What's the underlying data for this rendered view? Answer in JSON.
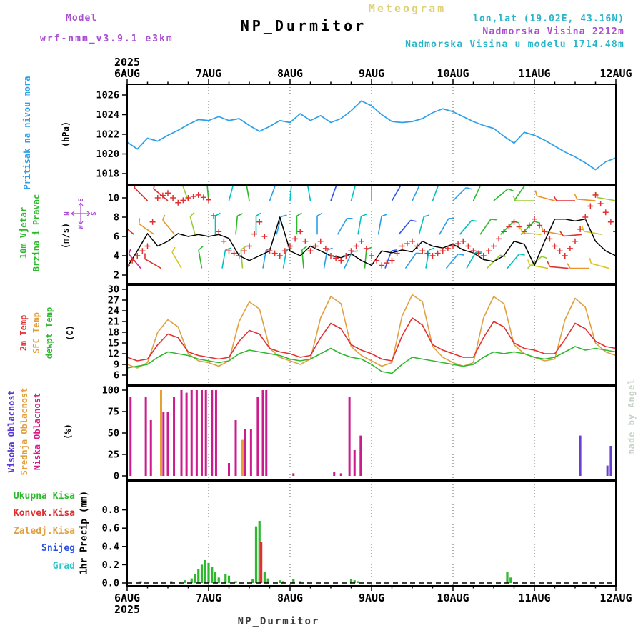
{
  "header": {
    "app_title": "Meteogram",
    "model_label": "Model",
    "model_name": "wrf-nmm_v3.9.1 e3km",
    "station": "NP_Durmitor",
    "lonlat": "lon,lat (19.02E, 43.16N)",
    "elevation": "Nadmorska Visina 2212m",
    "model_elevation": "Nadmorska Visina u modelu 1714.48m"
  },
  "time_axis": {
    "year": "2025",
    "days": [
      "6AUG",
      "7AUG",
      "8AUG",
      "9AUG",
      "10AUG",
      "11AUG",
      "12AUG"
    ],
    "span_hours": 144
  },
  "footer": {
    "station": "NP_Durmitor",
    "year": "2025"
  },
  "watermark": "made by Angel",
  "chart_data": [
    {
      "type": "line",
      "name": "pressure",
      "label": "Pritisak na nivou mora",
      "unit": "(hPa)",
      "yticks": [
        1026,
        1024,
        1022,
        1020,
        1018
      ],
      "ylim": [
        1017,
        1027
      ],
      "color": "#2da0e8",
      "step_hours": 3,
      "values": [
        1021.2,
        1020.5,
        1021.6,
        1021.3,
        1021.9,
        1022.4,
        1023.0,
        1023.5,
        1023.4,
        1023.8,
        1023.4,
        1023.6,
        1022.9,
        1022.3,
        1022.8,
        1023.4,
        1023.2,
        1024.1,
        1023.4,
        1023.9,
        1023.2,
        1023.6,
        1024.4,
        1025.4,
        1024.9,
        1024.0,
        1023.3,
        1023.2,
        1023.3,
        1023.6,
        1024.2,
        1024.6,
        1024.3,
        1023.8,
        1023.3,
        1022.9,
        1022.6,
        1021.8,
        1021.1,
        1022.2,
        1021.9,
        1021.4,
        1020.8,
        1020.2,
        1019.7,
        1019.1,
        1018.4,
        1019.2,
        1019.6
      ]
    },
    {
      "type": "wind-barbs",
      "name": "wind",
      "label1": "10m Vjetar",
      "label2": "Brzina i Pravac",
      "unit": "(m/s)",
      "yticks": [
        10,
        8,
        6,
        4,
        2
      ],
      "ylim": [
        1,
        11
      ],
      "compass": [
        "N",
        "E",
        "S",
        "W"
      ],
      "plus_series": {
        "label": "speed-plus-markers",
        "color": "#e23030",
        "step_hours": 3,
        "values": [
          3,
          4,
          5,
          10,
          10.5,
          9.5,
          10,
          10.3,
          9.8,
          6.5,
          4.5,
          4,
          5,
          7.5,
          4.5,
          4,
          5,
          6.5,
          4.5,
          5.5,
          4,
          3.5,
          4.5,
          5.5,
          4,
          3,
          3.5,
          5,
          5.5,
          4.5,
          4,
          4.5,
          5,
          5.5,
          4.5,
          4,
          5,
          6.5,
          7.5,
          6.5,
          7.8,
          6.5,
          5,
          4,
          5.5,
          8,
          10.3,
          8.5,
          6.5
        ]
      },
      "line_series": {
        "label": "speed-black-line",
        "color": "#000000",
        "step_hours": 3,
        "values": [
          2.8,
          4.5,
          6.3,
          5,
          5.5,
          6.3,
          6,
          6.2,
          6,
          6.2,
          5.8,
          4,
          3.5,
          4,
          4.5,
          8,
          4.5,
          4,
          5,
          4.5,
          4,
          3.8,
          4.2,
          3.5,
          3,
          4.5,
          4.3,
          4.6,
          4.4,
          5.5,
          5,
          4.8,
          5.2,
          4.6,
          4.3,
          3.6,
          3.4,
          4,
          5.5,
          5.2,
          3,
          5.5,
          7.8,
          7.8,
          7.6,
          7.8,
          5.5,
          4.5,
          4
        ]
      },
      "barbs": {
        "step_hours": 2,
        "row_levels": [
          9.7,
          6.2,
          2.7
        ],
        "dir_deg": [
          300,
          310,
          320,
          315,
          305,
          300,
          310,
          320,
          330,
          340,
          345,
          350,
          355,
          0,
          10,
          15,
          5,
          355,
          350,
          0,
          10,
          20,
          15,
          10,
          5,
          0,
          355,
          350,
          0,
          10,
          20,
          30,
          25,
          15,
          10,
          5,
          0,
          10,
          20,
          30,
          40,
          35,
          25,
          15,
          10,
          20,
          30,
          40,
          45,
          40,
          30,
          25,
          35,
          45,
          50,
          45,
          40,
          35,
          45,
          50,
          270,
          275,
          280,
          285,
          280,
          275,
          270,
          265,
          270,
          275,
          280,
          285,
          280
        ],
        "speed_ms": [
          9,
          10,
          10.5,
          9.5,
          8.5,
          9.5,
          10,
          9,
          8,
          7,
          6.5,
          6,
          5.5,
          5,
          4.5,
          5,
          6,
          6.5,
          5.5,
          4.5,
          4,
          3.5,
          4,
          4.5,
          5,
          5.5,
          6,
          5,
          4,
          3.5,
          3,
          3.5,
          4,
          4.5,
          5,
          5.5,
          4.5,
          3.5,
          3,
          2.5,
          3,
          3.5,
          4,
          4.5,
          5,
          4.5,
          4,
          3.5,
          4,
          4.5,
          5,
          5.5,
          6,
          6.5,
          6,
          5.5,
          5,
          5.5,
          6,
          6.5,
          7,
          7.5,
          8,
          8.5,
          9,
          9.5,
          10,
          9.5,
          9,
          8.5,
          8,
          7.5,
          7
        ]
      }
    },
    {
      "type": "line",
      "name": "temperature",
      "unit": "(C)",
      "yticks": [
        30,
        27,
        24,
        21,
        18,
        15,
        12,
        9,
        6
      ],
      "ylim": [
        5,
        31
      ],
      "step_hours": 3,
      "series": [
        {
          "label": "2m Temp",
          "color": "#e23030",
          "values": [
            11,
            10,
            10.5,
            14.5,
            17.5,
            16.5,
            12.5,
            11.5,
            11,
            10.5,
            11,
            15.5,
            18.5,
            17.5,
            13.5,
            12.5,
            12,
            11,
            11.5,
            16.5,
            20.5,
            19,
            14.5,
            13,
            12,
            10.5,
            10,
            17,
            22,
            20,
            14.5,
            13,
            12,
            11,
            11,
            16.5,
            21,
            19.5,
            15,
            13.5,
            13,
            12,
            12,
            16,
            20.5,
            19,
            15.5,
            14,
            13.5
          ]
        },
        {
          "label": "SFC Temp",
          "color": "#e0a040",
          "values": [
            9,
            8,
            9.5,
            18,
            21.5,
            19.5,
            12,
            10,
            9.5,
            8.5,
            10,
            21,
            26.5,
            24.5,
            13.5,
            11,
            10,
            9,
            10.5,
            22,
            28,
            26,
            14,
            11.5,
            10,
            8.5,
            9.5,
            22.5,
            28.5,
            26.5,
            14,
            11,
            9.5,
            8.5,
            9.5,
            22,
            28,
            26,
            14.5,
            12,
            11,
            10,
            10.5,
            21.5,
            27.5,
            25,
            15,
            12.5,
            11.5
          ]
        },
        {
          "label": "dewpt Temp",
          "color": "#2eb82e",
          "values": [
            8,
            8.5,
            9,
            11,
            12.5,
            12,
            11.5,
            10.5,
            10,
            9.5,
            10,
            12,
            13,
            12.5,
            12,
            11.5,
            10.5,
            10,
            10.5,
            12,
            13.5,
            12,
            11,
            10.5,
            9,
            7,
            6.5,
            9,
            11,
            10.5,
            10,
            9.5,
            9,
            8.5,
            9,
            11,
            12.5,
            12,
            12.5,
            12,
            11,
            10.5,
            11,
            12.5,
            14,
            13,
            13.5,
            13,
            12.5
          ]
        }
      ]
    },
    {
      "type": "bar",
      "name": "cloudiness",
      "unit": "(%)",
      "yticks": [
        100,
        75,
        50,
        25,
        0
      ],
      "ylim": [
        0,
        100
      ],
      "series_info": [
        {
          "key": "h",
          "label": "Visoka Oblacnost",
          "color": "#6a3fd0"
        },
        {
          "key": "m",
          "label": "Srednja Oblacnost",
          "color": "#e8a030"
        },
        {
          "key": "l",
          "label": "Niska Oblacnost",
          "color": "#cb1b8d"
        }
      ],
      "bars": [
        [
          1,
          92,
          "l"
        ],
        [
          5.5,
          92,
          "l"
        ],
        [
          7,
          65,
          "l"
        ],
        [
          10,
          100,
          "m"
        ],
        [
          10.7,
          75,
          "l"
        ],
        [
          12,
          75,
          "l"
        ],
        [
          13.8,
          92,
          "l"
        ],
        [
          16,
          100,
          "l"
        ],
        [
          17.5,
          97,
          "l"
        ],
        [
          19,
          100,
          "l"
        ],
        [
          20.5,
          100,
          "l"
        ],
        [
          22,
          100,
          "l"
        ],
        [
          23.2,
          100,
          "l"
        ],
        [
          25,
          100,
          "l"
        ],
        [
          26.2,
          100,
          "l"
        ],
        [
          30,
          15,
          "l"
        ],
        [
          32,
          65,
          "l"
        ],
        [
          34,
          42,
          "m"
        ],
        [
          34.8,
          55,
          "l"
        ],
        [
          36.5,
          55,
          "l"
        ],
        [
          38.5,
          92,
          "l"
        ],
        [
          40,
          100,
          "l"
        ],
        [
          41,
          100,
          "l"
        ],
        [
          49,
          3,
          "l"
        ],
        [
          61,
          5,
          "l"
        ],
        [
          63,
          3,
          "l"
        ],
        [
          65.5,
          92,
          "l"
        ],
        [
          67,
          30,
          "l"
        ],
        [
          68.8,
          47,
          "l"
        ],
        [
          133.5,
          47,
          "h"
        ],
        [
          141.5,
          12,
          "h"
        ],
        [
          142.5,
          35,
          "h"
        ]
      ]
    },
    {
      "type": "bar",
      "name": "precipitation",
      "ylabel": "1hr Precip (mm)",
      "yticks": [
        "0.8",
        "0.6",
        "0.4",
        "0.2",
        "0.0"
      ],
      "ylim": [
        0,
        1
      ],
      "series_info": [
        {
          "key": "t",
          "label": "Ukupna Kisa",
          "color": "#2eb82e"
        },
        {
          "key": "c",
          "label": "Konvek.Kisa",
          "color": "#e23030"
        },
        {
          "key": "f",
          "label": "Zaledj.Kisa",
          "color": "#e8a030"
        },
        {
          "key": "s",
          "label": "Snijeg",
          "color": "#2a52e8"
        },
        {
          "key": "g",
          "label": "Grad",
          "color": "#2cc8c8"
        }
      ],
      "bars": [
        [
          4,
          0.02,
          "t"
        ],
        [
          13,
          0.02,
          "t"
        ],
        [
          17,
          0.03,
          "t"
        ],
        [
          19,
          0.05,
          "t"
        ],
        [
          20,
          0.1,
          "t"
        ],
        [
          21,
          0.15,
          "t"
        ],
        [
          22,
          0.2,
          "t"
        ],
        [
          23,
          0.25,
          "t"
        ],
        [
          24,
          0.22,
          "t"
        ],
        [
          25,
          0.18,
          "t"
        ],
        [
          26,
          0.12,
          "t"
        ],
        [
          27,
          0.06,
          "t"
        ],
        [
          29,
          0.1,
          "t"
        ],
        [
          30,
          0.08,
          "t"
        ],
        [
          32,
          0.02,
          "t"
        ],
        [
          37,
          0.04,
          "t"
        ],
        [
          38,
          0.62,
          "t"
        ],
        [
          39,
          0.68,
          "t"
        ],
        [
          39.5,
          0.45,
          "c"
        ],
        [
          40.5,
          0.12,
          "t"
        ],
        [
          41.5,
          0.05,
          "t"
        ],
        [
          45,
          0.03,
          "t"
        ],
        [
          46,
          0.02,
          "t"
        ],
        [
          49,
          0.04,
          "t"
        ],
        [
          51,
          0.02,
          "t"
        ],
        [
          66,
          0.04,
          "t"
        ],
        [
          67,
          0.03,
          "t"
        ],
        [
          68,
          0.02,
          "t"
        ],
        [
          112,
          0.12,
          "t"
        ],
        [
          113,
          0.06,
          "t"
        ]
      ]
    }
  ]
}
